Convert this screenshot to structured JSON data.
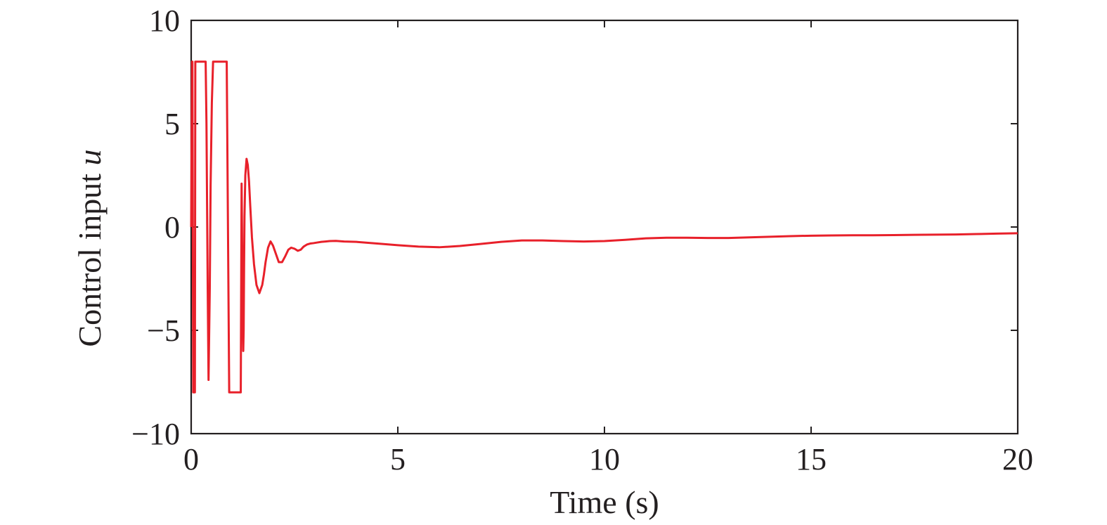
{
  "chart_data": {
    "type": "line",
    "title": "",
    "xlabel": "Time (s)",
    "ylabel_text": "Control input ",
    "ylabel_symbol": "u",
    "xlim": [
      0,
      20
    ],
    "ylim": [
      -10,
      10
    ],
    "xticks": [
      0,
      5,
      10,
      15,
      20
    ],
    "xtick_labels": [
      "0",
      "5",
      "10",
      "15",
      "20"
    ],
    "yticks": [
      -10,
      -5,
      0,
      5,
      10
    ],
    "ytick_labels": [
      "−10",
      "−5",
      "0",
      "5",
      "10"
    ],
    "grid": false,
    "line_color": "#e8202a",
    "axis_color": "#231f20",
    "series": [
      {
        "x": [
          0,
          0.02,
          0.03,
          0.05,
          0.06,
          0.09,
          0.1,
          0.13,
          0.14,
          0.2,
          0.21,
          0.33,
          0.35,
          0.37,
          0.4,
          0.42,
          0.45,
          0.47,
          0.5,
          0.53,
          0.56,
          0.6,
          0.64,
          0.7,
          0.72,
          0.85,
          0.86,
          0.92,
          0.94,
          1.0,
          1.05,
          1.1,
          1.2,
          1.22,
          1.23,
          1.24,
          1.26,
          1.27,
          1.28,
          1.29,
          1.31,
          1.34,
          1.37,
          1.4,
          1.43,
          1.47,
          1.52,
          1.58,
          1.65,
          1.72,
          1.76,
          1.8,
          1.86,
          1.92,
          1.98,
          2.05,
          2.12,
          2.2,
          2.28,
          2.35,
          2.42,
          2.5,
          2.58,
          2.65,
          2.72,
          2.8,
          2.88,
          2.96,
          3.05,
          3.15,
          3.25,
          3.35,
          3.5,
          3.7,
          4.0,
          4.5,
          5.0,
          5.5,
          6.0,
          6.5,
          7.0,
          7.5,
          8.0,
          8.5,
          9.0,
          9.5,
          10.0,
          10.5,
          11.0,
          11.5,
          12.0,
          12.5,
          13.0,
          13.5,
          14.0,
          14.5,
          15.0,
          15.5,
          16.0,
          16.5,
          17.0,
          17.5,
          18.0,
          18.5,
          19.0,
          19.5,
          20.0
        ],
        "y": [
          0,
          8,
          8,
          -8,
          -8,
          -8,
          8,
          8,
          8,
          8,
          8,
          8,
          8,
          5,
          -3,
          -7.4,
          -3,
          2,
          6,
          8,
          8,
          8,
          8,
          8,
          8,
          8,
          8,
          -8,
          -8,
          -8,
          -8,
          -8,
          -8,
          2.1,
          0,
          -3,
          -6,
          -5,
          -2,
          0.5,
          2.5,
          3.3,
          3.0,
          2.2,
          1.0,
          -0.5,
          -1.8,
          -2.8,
          -3.2,
          -2.8,
          -2.3,
          -1.7,
          -1.0,
          -0.7,
          -0.9,
          -1.3,
          -1.7,
          -1.7,
          -1.4,
          -1.1,
          -1.0,
          -1.05,
          -1.15,
          -1.1,
          -0.95,
          -0.85,
          -0.8,
          -0.78,
          -0.75,
          -0.72,
          -0.7,
          -0.68,
          -0.67,
          -0.7,
          -0.72,
          -0.8,
          -0.88,
          -0.95,
          -0.98,
          -0.92,
          -0.82,
          -0.72,
          -0.65,
          -0.65,
          -0.68,
          -0.7,
          -0.68,
          -0.62,
          -0.55,
          -0.52,
          -0.52,
          -0.53,
          -0.53,
          -0.5,
          -0.47,
          -0.44,
          -0.42,
          -0.41,
          -0.4,
          -0.4,
          -0.39,
          -0.38,
          -0.37,
          -0.36,
          -0.34,
          -0.32,
          -0.3
        ]
      }
    ]
  }
}
